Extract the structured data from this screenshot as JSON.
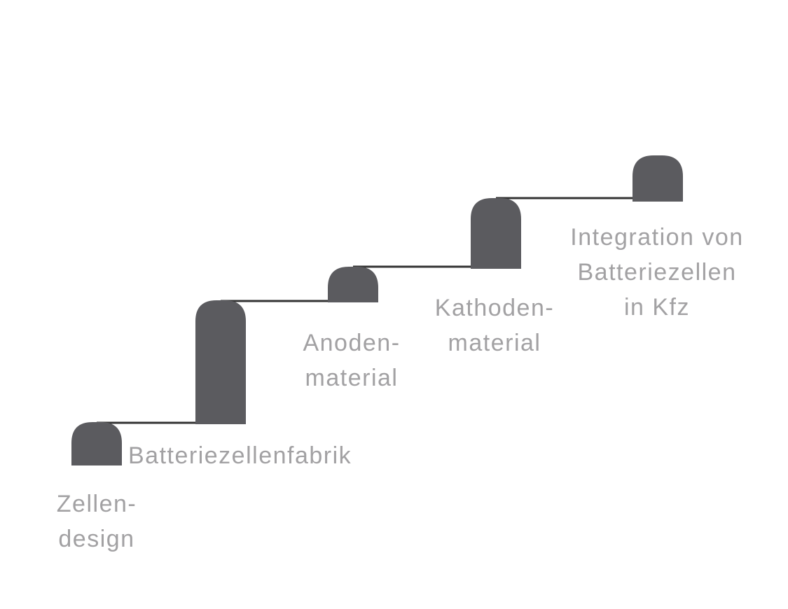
{
  "diagram": {
    "steps": [
      {
        "id": "zellendesign",
        "lines": [
          "Zellen-",
          "design"
        ]
      },
      {
        "id": "batteriezellenfabrik",
        "lines": [
          "Batteriezellenfabrik"
        ]
      },
      {
        "id": "anodenmaterial",
        "lines": [
          "Anoden-",
          "material"
        ]
      },
      {
        "id": "kathodenmaterial",
        "lines": [
          "Kathoden-",
          "material"
        ]
      },
      {
        "id": "integration",
        "lines": [
          "Integration von",
          "Batteriezellen",
          "in Kfz"
        ]
      }
    ],
    "colors": {
      "block": "#5b5b5f",
      "connector": "#333333",
      "label": "#a2a1a3"
    }
  }
}
